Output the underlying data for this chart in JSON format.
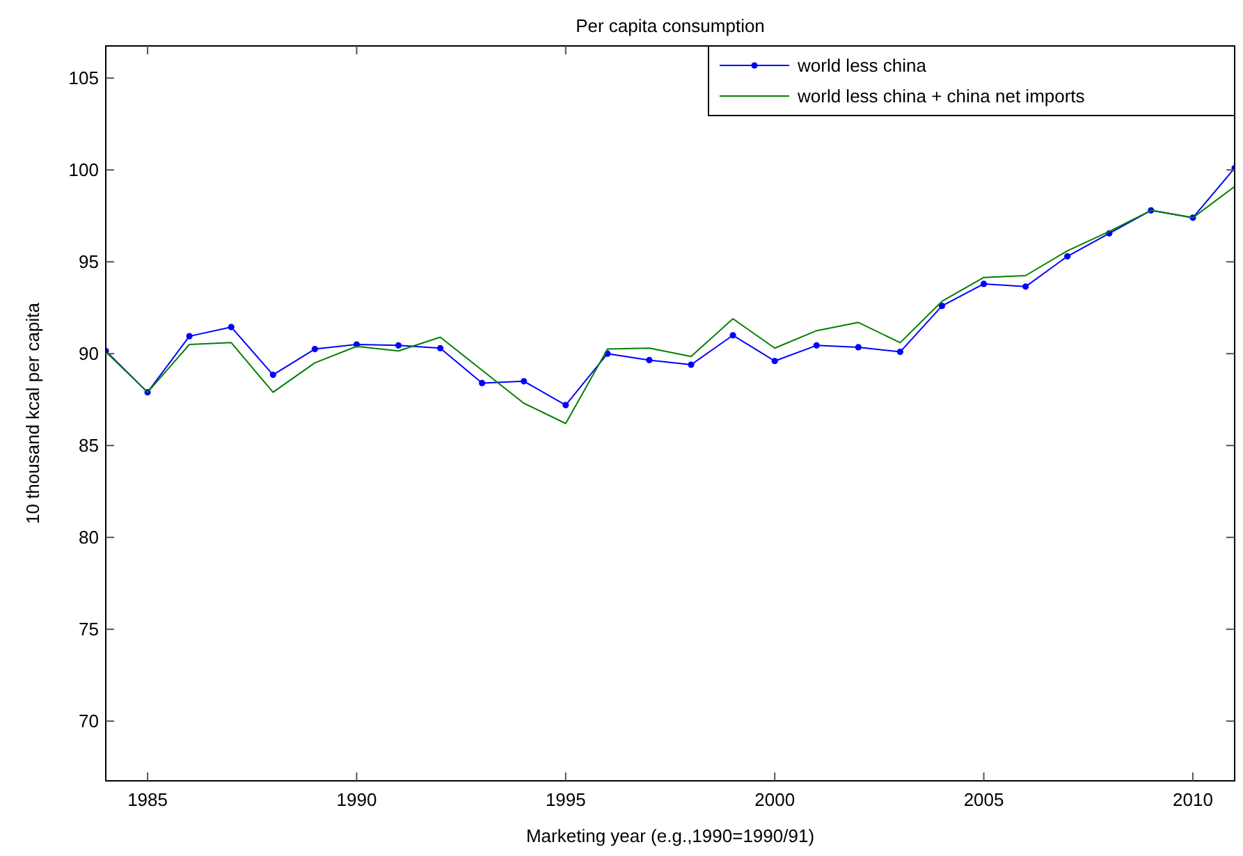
{
  "chart_data": {
    "type": "line",
    "title": "Per capita consumption",
    "xlabel": "Marketing year (e.g.,1990=1990/91)",
    "ylabel": "10 thousand kcal per capita",
    "x": [
      1984,
      1985,
      1986,
      1987,
      1988,
      1989,
      1990,
      1991,
      1992,
      1993,
      1994,
      1995,
      1996,
      1997,
      1998,
      1999,
      2000,
      2001,
      2002,
      2003,
      2004,
      2005,
      2006,
      2007,
      2008,
      2009,
      2010,
      2011
    ],
    "series": [
      {
        "name": "world less china",
        "color": "#0000ff",
        "marker": "circle",
        "values": [
          90.15,
          87.9,
          90.95,
          91.45,
          88.85,
          90.25,
          90.5,
          90.45,
          90.3,
          88.4,
          88.5,
          87.2,
          90.0,
          89.65,
          89.4,
          91.0,
          89.6,
          90.45,
          90.35,
          90.1,
          92.6,
          93.8,
          93.65,
          95.3,
          96.55,
          97.8,
          97.4,
          100.1
        ]
      },
      {
        "name": "world less china + china net imports",
        "color": "#008000",
        "marker": "none",
        "values": [
          90.1,
          87.9,
          90.5,
          90.6,
          87.9,
          89.5,
          90.4,
          90.15,
          90.9,
          89.1,
          87.3,
          86.2,
          90.25,
          90.3,
          89.85,
          91.9,
          90.3,
          91.25,
          91.7,
          90.6,
          92.85,
          94.15,
          94.25,
          95.6,
          96.65,
          97.8,
          97.4,
          99.1
        ]
      }
    ],
    "xlim": [
      1984,
      2011
    ],
    "xticks": [
      1985,
      1990,
      1995,
      2000,
      2005,
      2010
    ],
    "ylim": [
      66.75,
      106.75
    ],
    "yticks": [
      70,
      75,
      80,
      85,
      90,
      95,
      100,
      105
    ],
    "grid": false,
    "legend": "top right"
  }
}
